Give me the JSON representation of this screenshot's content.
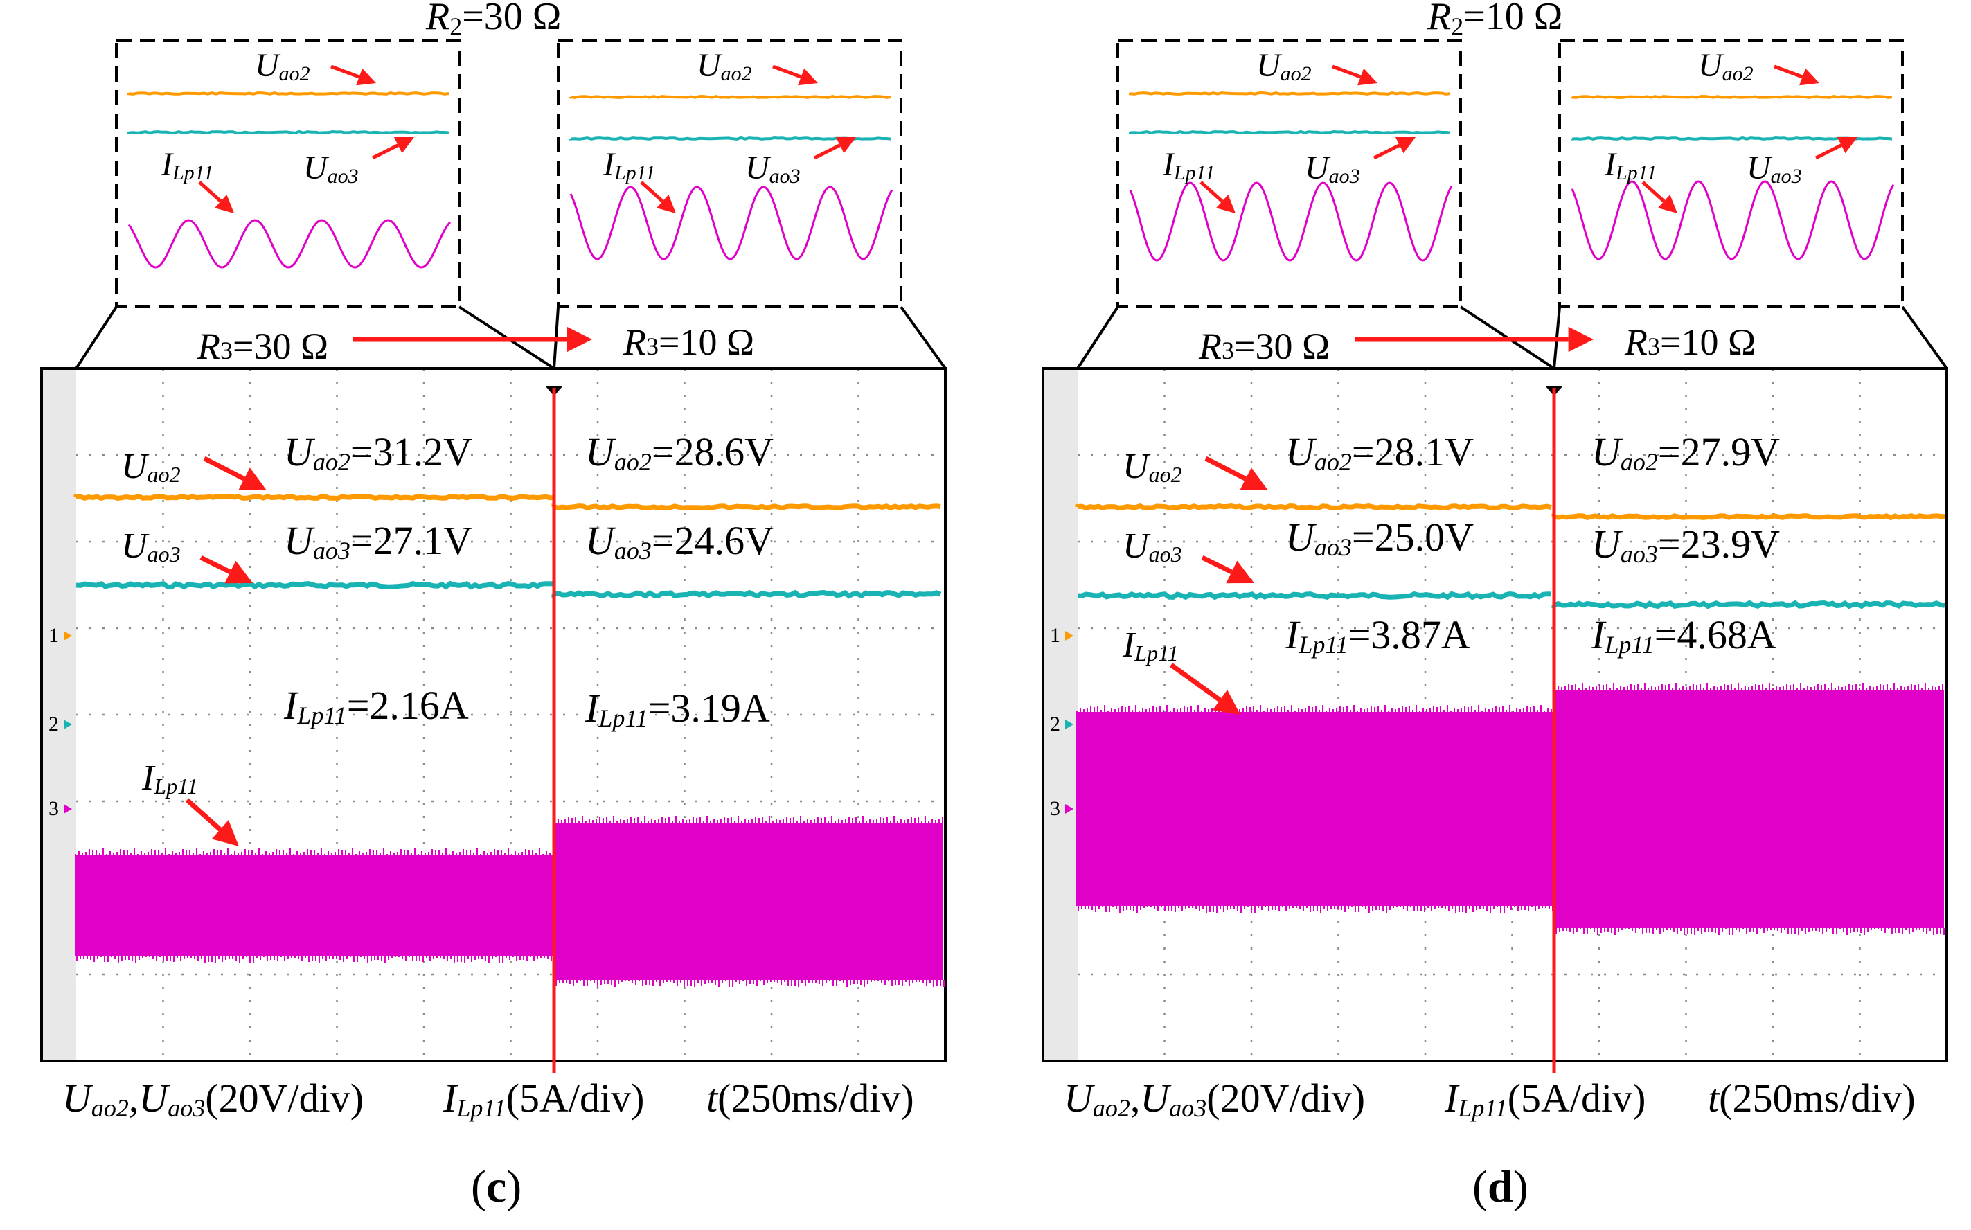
{
  "colors": {
    "uao2": "#ff9900",
    "uao3": "#1ab3b3",
    "ilp": "#e000c8",
    "arrow": "#ff1a1a",
    "frame": "#000000",
    "grid": "#8a8a8a",
    "screen_strip": "#e8e8e8"
  },
  "symbols": {
    "U": "U",
    "ao2": "ao2",
    "ao3": "ao3",
    "I": "I",
    "Lp11": "Lp11",
    "R": "R",
    "R2": "2",
    "R3": "3",
    "ohm": "Ω",
    "t": "t"
  },
  "panels": [
    {
      "id": "c",
      "caption": "c",
      "zoom_title_value": "=30 Ω",
      "r3_before": "=30 Ω",
      "r3_after": "=10 Ω",
      "channel_markers": [
        "1",
        "2",
        "3"
      ],
      "before": {
        "uao2": "=31.2V",
        "uao3": "=27.1V",
        "ilp11": "=2.16A"
      },
      "after": {
        "uao2": "=28.6V",
        "uao3": "=24.6V",
        "ilp11": "=3.19A"
      },
      "axis": {
        "voltage": "(20V/div)",
        "current": "(5A/div)",
        "time": "(250ms/div)",
        "comma": ","
      }
    },
    {
      "id": "d",
      "caption": "d",
      "zoom_title_value": "=10 Ω",
      "r3_before": "=30 Ω",
      "r3_after": "=10 Ω",
      "channel_markers": [
        "1",
        "2",
        "3"
      ],
      "before": {
        "uao2": "=28.1V",
        "uao3": "=25.0V",
        "ilp11": "=3.87A"
      },
      "after": {
        "uao2": "=27.9V",
        "uao3": "=23.9V",
        "ilp11": "=4.68A"
      },
      "axis": {
        "voltage": "(20V/div)",
        "current": "(5A/div)",
        "time": "(250ms/div)",
        "comma": ","
      }
    }
  ],
  "chart_data": [
    {
      "type": "line",
      "title": "(c) R2=30 Ω, R3 step 30 Ω → 10 Ω",
      "xlabel": "t (250ms/div)",
      "ylabel": "Uao2, Uao3 (20V/div); ILp11 (5A/div)",
      "grid": true,
      "series": [
        {
          "name": "Uao2",
          "units": "V",
          "values": [
            31.2,
            28.6
          ]
        },
        {
          "name": "Uao3",
          "units": "V",
          "values": [
            27.1,
            24.6
          ]
        },
        {
          "name": "ILp11",
          "units": "A",
          "values": [
            2.16,
            3.19
          ]
        }
      ],
      "categories": [
        "R3=30 Ω",
        "R3=10 Ω"
      ]
    },
    {
      "type": "line",
      "title": "(d) R2=10 Ω, R3 step 30 Ω → 10 Ω",
      "xlabel": "t (250ms/div)",
      "ylabel": "Uao2, Uao3 (20V/div); ILp11 (5A/div)",
      "grid": true,
      "series": [
        {
          "name": "Uao2",
          "units": "V",
          "values": [
            28.1,
            27.9
          ]
        },
        {
          "name": "Uao3",
          "units": "V",
          "values": [
            25.0,
            23.9
          ]
        },
        {
          "name": "ILp11",
          "units": "A",
          "values": [
            3.87,
            4.68
          ]
        }
      ],
      "categories": [
        "R3=30 Ω",
        "R3=10 Ω"
      ]
    }
  ]
}
